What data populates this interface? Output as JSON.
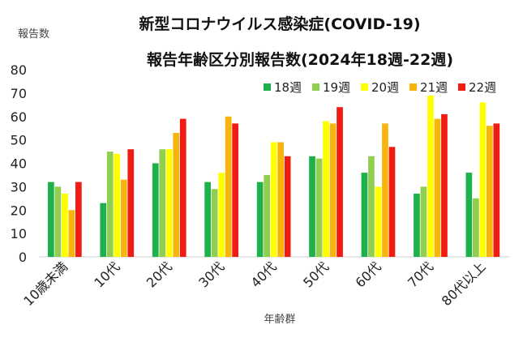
{
  "chart_data": {
    "type": "bar",
    "title": "新型コロナウイルス感染症(COVID-19)",
    "subtitle": "報告年齢区分別報告数(2024年18週-22週)",
    "ylabel": "報告数",
    "xlabel": "年齢群",
    "ylim": [
      0,
      80
    ],
    "yticks": [
      0,
      10,
      20,
      30,
      40,
      50,
      60,
      70,
      80
    ],
    "grid": false,
    "legend_position": "top-right",
    "categories": [
      "10歳未満",
      "10代",
      "20代",
      "30代",
      "40代",
      "50代",
      "60代",
      "70代",
      "80代以上"
    ],
    "series": [
      {
        "name": "18週",
        "color": "#1db04b",
        "values": [
          32,
          23,
          40,
          32,
          32,
          43,
          36,
          27,
          36
        ]
      },
      {
        "name": "19週",
        "color": "#8fce4f",
        "values": [
          30,
          45,
          46,
          29,
          35,
          42,
          43,
          30,
          25
        ]
      },
      {
        "name": "20週",
        "color": "#ffff00",
        "values": [
          27,
          44,
          46,
          36,
          49,
          58,
          30,
          69,
          66
        ]
      },
      {
        "name": "21週",
        "color": "#f7b40c",
        "values": [
          20,
          33,
          53,
          60,
          49,
          57,
          57,
          59,
          56
        ]
      },
      {
        "name": "22週",
        "color": "#f01c14",
        "values": [
          32,
          46,
          59,
          57,
          43,
          64,
          47,
          61,
          57
        ]
      }
    ]
  }
}
